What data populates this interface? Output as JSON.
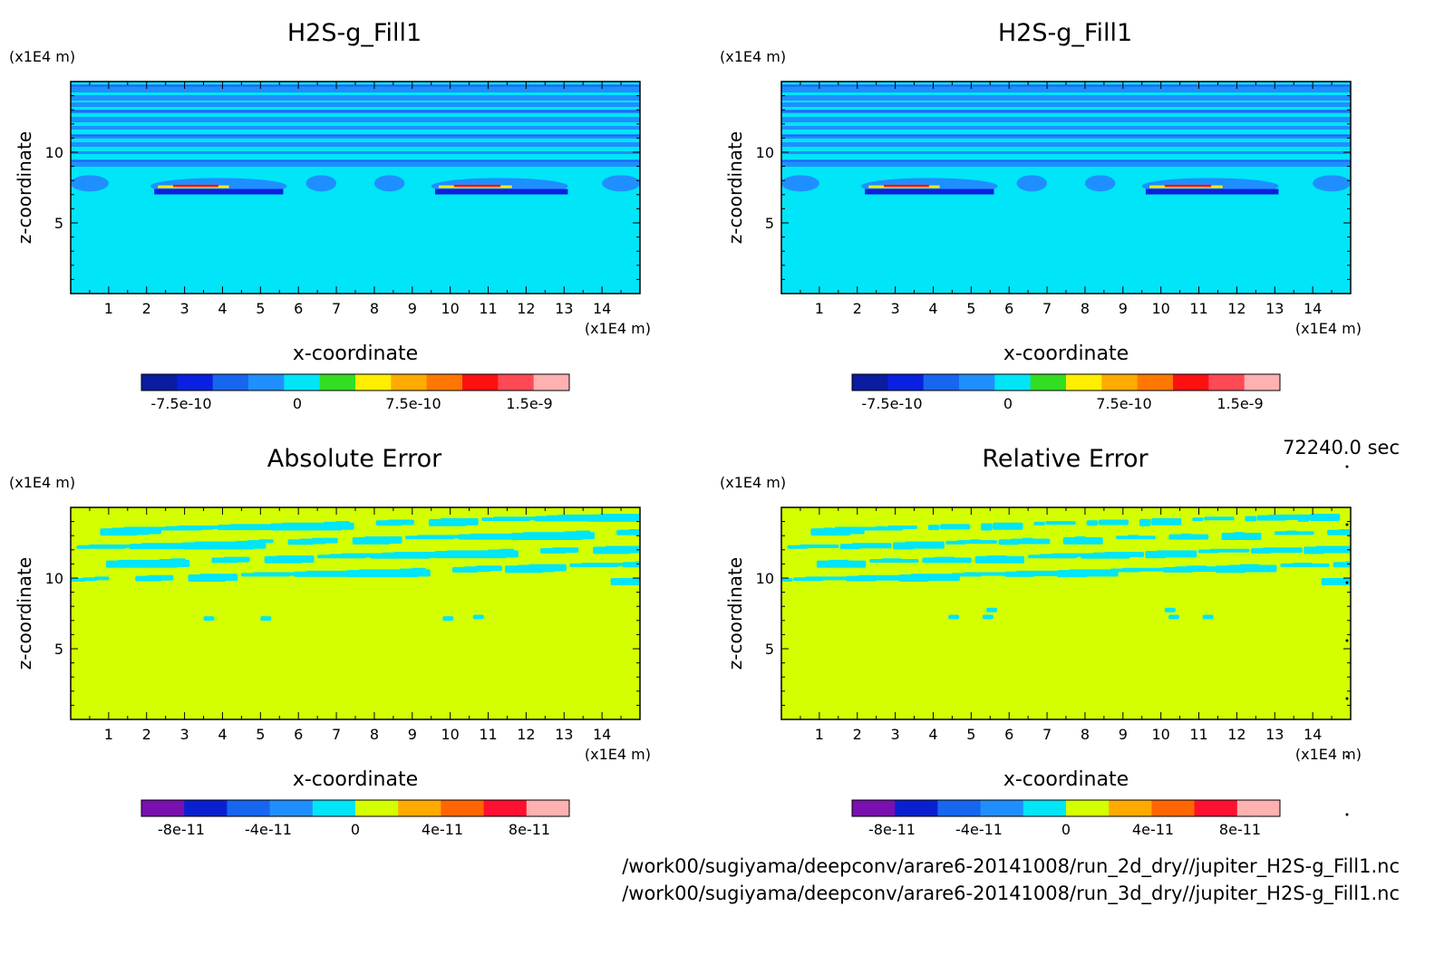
{
  "time_label": "72240.0 sec",
  "files": [
    "/work00/sugiyama/deepconv/arare6-20141008/run_2d_dry//jupiter_H2S-g_Fill1.nc",
    "/work00/sugiyama/deepconv/arare6-20141008/run_3d_dry//jupiter_H2S-g_Fill1.nc"
  ],
  "colors": {
    "fieldBackground": "#00e5f7",
    "fieldBands": "#1f8fff",
    "fieldBandsDark": "#1766f0",
    "errorBackground": "#d3ff00",
    "errorPatch": "#00e5f7"
  },
  "chart_data": [
    {
      "type": "heatmap",
      "id": "p1",
      "title": "H2S-g_Fill1",
      "xlabel": "x-coordinate",
      "ylabel": "z-coordinate",
      "xunit": "(x1E4 m)",
      "yunit": "(x1E4 m)",
      "xlim": [
        0,
        15
      ],
      "ylim": [
        0,
        15
      ],
      "xticks": [
        1,
        2,
        3,
        4,
        5,
        6,
        7,
        8,
        9,
        10,
        11,
        12,
        13,
        14
      ],
      "yticks": [
        5,
        10
      ],
      "field": "field",
      "colorbar": {
        "colors": [
          "#0a1ca0",
          "#0a20e0",
          "#1766f0",
          "#1f8fff",
          "#00e5f7",
          "#33dd22",
          "#ffee00",
          "#ffaa00",
          "#ff7700",
          "#ff1010",
          "#ff4a55",
          "#ffb0b0"
        ],
        "labels": [
          "-7.5e-10",
          "0",
          "7.5e-10",
          "1.5e-9"
        ]
      }
    },
    {
      "type": "heatmap",
      "id": "p2",
      "title": "H2S-g_Fill1",
      "xlabel": "x-coordinate",
      "ylabel": "z-coordinate",
      "xunit": "(x1E4 m)",
      "yunit": "(x1E4 m)",
      "xlim": [
        0,
        15
      ],
      "ylim": [
        0,
        15
      ],
      "xticks": [
        1,
        2,
        3,
        4,
        5,
        6,
        7,
        8,
        9,
        10,
        11,
        12,
        13,
        14
      ],
      "yticks": [
        5,
        10
      ],
      "field": "field",
      "colorbar": {
        "colors": [
          "#0a1ca0",
          "#0a20e0",
          "#1766f0",
          "#1f8fff",
          "#00e5f7",
          "#33dd22",
          "#ffee00",
          "#ffaa00",
          "#ff7700",
          "#ff1010",
          "#ff4a55",
          "#ffb0b0"
        ],
        "labels": [
          "-7.5e-10",
          "0",
          "7.5e-10",
          "1.5e-9"
        ]
      }
    },
    {
      "type": "heatmap",
      "id": "p3",
      "title": "Absolute Error",
      "xlabel": "x-coordinate",
      "ylabel": "z-coordinate",
      "xunit": "(x1E4 m)",
      "yunit": "(x1E4 m)",
      "xlim": [
        0,
        15
      ],
      "ylim": [
        0,
        15
      ],
      "xticks": [
        1,
        2,
        3,
        4,
        5,
        6,
        7,
        8,
        9,
        10,
        11,
        12,
        13,
        14
      ],
      "yticks": [
        5,
        10
      ],
      "field": "error-abs",
      "colorbar": {
        "colors": [
          "#7a10b0",
          "#0a20d0",
          "#1766f0",
          "#1f8fff",
          "#00e5f7",
          "#d3ff00",
          "#ffaa00",
          "#ff6600",
          "#ff1030",
          "#ffb0b0"
        ],
        "labels": [
          "-8e-11",
          "-4e-11",
          "0",
          "4e-11",
          "8e-11"
        ]
      }
    },
    {
      "type": "heatmap",
      "id": "p4",
      "title": "Relative Error",
      "xlabel": "x-coordinate",
      "ylabel": "z-coordinate",
      "xunit": "(x1E4 m)",
      "yunit": "(x1E4 m)",
      "xlim": [
        0,
        15
      ],
      "ylim": [
        0,
        15
      ],
      "xticks": [
        1,
        2,
        3,
        4,
        5,
        6,
        7,
        8,
        9,
        10,
        11,
        12,
        13,
        14
      ],
      "yticks": [
        5,
        10
      ],
      "field": "error-rel",
      "colorbar": {
        "colors": [
          "#7a10b0",
          "#0a20d0",
          "#1766f0",
          "#1f8fff",
          "#00e5f7",
          "#d3ff00",
          "#ffaa00",
          "#ff6600",
          "#ff1030",
          "#ffb0b0"
        ],
        "labels": [
          "-8e-11",
          "-4e-11",
          "0",
          "4e-11",
          "8e-11"
        ]
      }
    }
  ]
}
